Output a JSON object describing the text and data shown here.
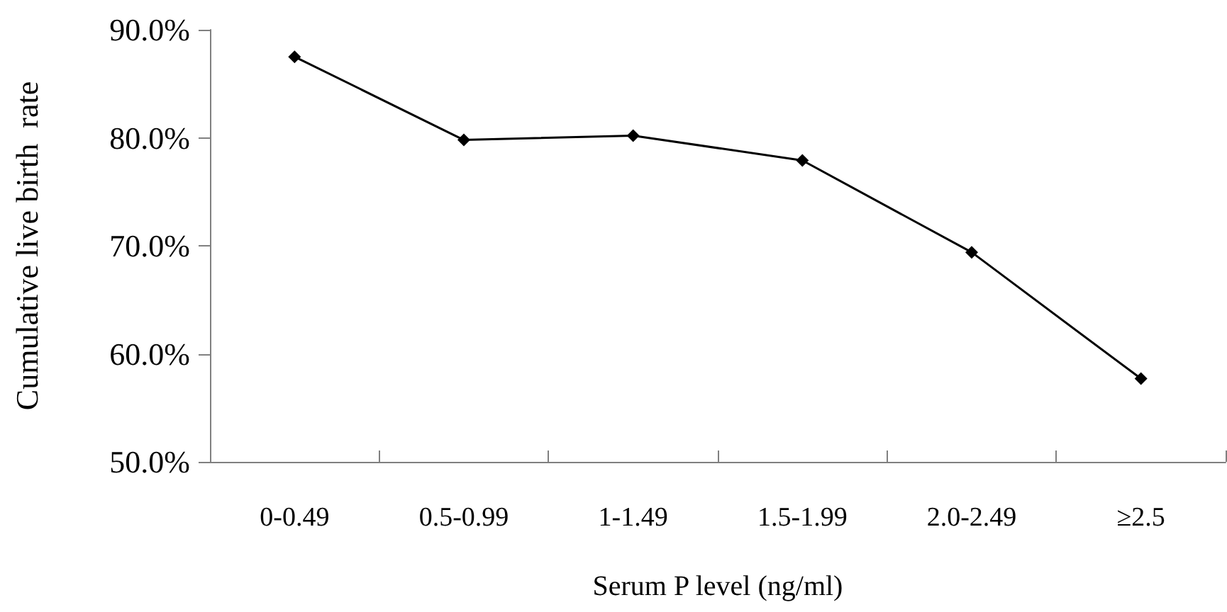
{
  "chart_data": {
    "type": "line",
    "xlabel": "Serum P level (ng/ml)",
    "ylabel": "Cumulative live birth  rate",
    "categories": [
      "0-0.49",
      "0.5-0.99",
      "1-1.49",
      "1.5-1.99",
      "2.0-2.49",
      "≥2.5"
    ],
    "series": [
      {
        "color": "#000000",
        "values": [
          87.5,
          79.8,
          80.2,
          77.9,
          69.4,
          57.7
        ]
      }
    ],
    "ylim": [
      50,
      90
    ],
    "yticks": [
      {
        "value": 50,
        "label": "50.0%"
      },
      {
        "value": 60,
        "label": "60.0%"
      },
      {
        "value": 70,
        "label": "70.0%"
      },
      {
        "value": 80,
        "label": "80.0%"
      },
      {
        "value": 90,
        "label": "90.0%"
      }
    ],
    "grid": false,
    "marker": "diamond",
    "line_style": "solid"
  }
}
